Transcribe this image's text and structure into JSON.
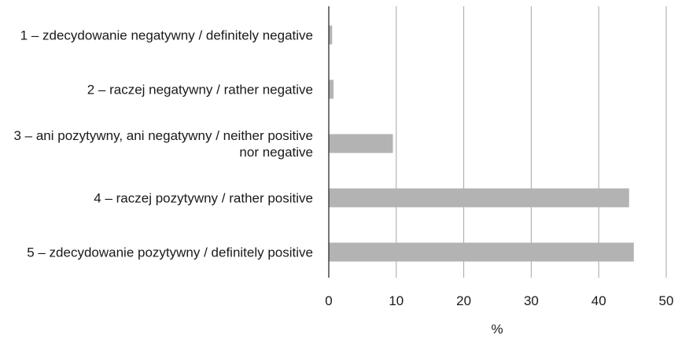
{
  "chart_data": {
    "type": "bar",
    "orientation": "horizontal",
    "categories": [
      [
        "1 – zdecydowanie negatywny / definitely negative"
      ],
      [
        "2 – raczej negatywny / rather negative"
      ],
      [
        "3 – ani pozytywny, ani negatywny / neither positive",
        "nor negative"
      ],
      [
        "4 – raczej pozytywny / rather positive"
      ],
      [
        "5 – zdecydowanie pozytywny / definitely positive"
      ]
    ],
    "values": [
      0.5,
      0.7,
      9.5,
      44.5,
      45.2
    ],
    "xlabel": "%",
    "xlim": [
      0,
      50
    ],
    "xticks": [
      0,
      10,
      20,
      30,
      40,
      50
    ],
    "grid": "vertical",
    "legend": "none",
    "colors": {
      "bar": "#b3b3b3",
      "grid": "#a6a6a6",
      "axis": "#1a1a1a"
    }
  }
}
